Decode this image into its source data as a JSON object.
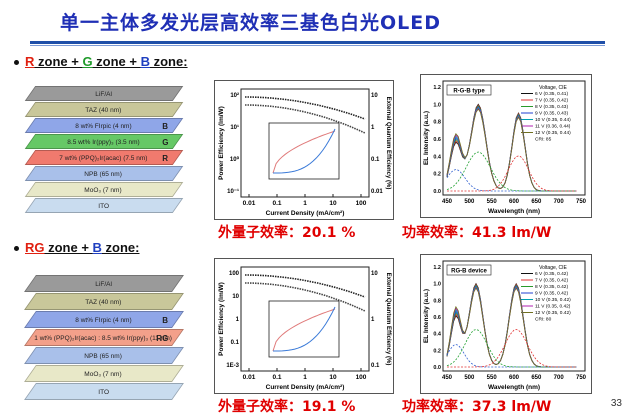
{
  "title": "单一主体多发光层高效率三基色白光OLED",
  "sections": [
    {
      "bullet": [
        "R",
        " zone + ",
        "G",
        " zone + ",
        "B",
        " zone:"
      ],
      "layers": [
        {
          "label": "LiF/Al",
          "letter": "",
          "color": "#9a9a9a"
        },
        {
          "label": "TAZ (40 nm)",
          "letter": "",
          "color": "#c9c79a"
        },
        {
          "label": "8 wt% FIrpic (4 nm)",
          "letter": "B",
          "color": "#8fa6e8"
        },
        {
          "label": "8.5 wt% Ir(ppy)₃ (3.5 nm)",
          "letter": "G",
          "color": "#66c866"
        },
        {
          "label": "7 wt% (PPQ)₂Ir(acac) (7.5 nm)",
          "letter": "R",
          "color": "#f07a6e"
        },
        {
          "label": "NPB (65 nm)",
          "letter": "",
          "color": "#a9c0ea"
        },
        {
          "label": "MoO₃ (7 nm)",
          "letter": "",
          "color": "#e8e8c8"
        },
        {
          "label": "ITO",
          "letter": "",
          "color": "#c9dcef"
        }
      ],
      "eff_chart": {
        "xlabel": "Current Density (mA/cm²)",
        "ylabel": "Power Efficiency (lm/W)",
        "y2label": "External Quantum Efficiency (%)",
        "xticks": [
          "0.01",
          "0.1",
          "1",
          "10",
          "100"
        ],
        "yticks": [
          "10²",
          "10¹",
          "10⁰",
          "10⁻¹"
        ],
        "y2ticks": [
          "10",
          "1",
          "0.1",
          "0.01"
        ]
      },
      "el_chart": {
        "legend_label": "R-G-B type",
        "legend_title": "Voltage, CIE",
        "legend_items": [
          "6 V (0.35, 0.41)",
          "7 V (0.35, 0.42)",
          "8 V (0.35, 0.43)",
          "9 V (0.35, 0.43)",
          "10 V (0.35, 0.44)",
          "11 V (0.36, 0.44)",
          "12 V (0.35, 0.44)",
          "CRI: 85"
        ],
        "xlabel": "Wavelength (nm)",
        "ylabel": "EL Intensity (a.u.)",
        "xticks": [
          "450",
          "500",
          "550",
          "600",
          "650",
          "700",
          "750"
        ],
        "yticks": [
          "0.0",
          "0.2",
          "0.4",
          "0.6",
          "0.8",
          "1.0",
          "1.2"
        ]
      },
      "stats": {
        "eqe_label": "外量子效率：",
        "eqe_value": "20.1 %",
        "pe_label": "功率效率：",
        "pe_value": "41.3 lm/W"
      }
    },
    {
      "bullet": [
        "RG",
        " zone + ",
        "B",
        " zone:"
      ],
      "layers": [
        {
          "label": "LiF/Al",
          "letter": "",
          "color": "#9a9a9a"
        },
        {
          "label": "TAZ (40 nm)",
          "letter": "",
          "color": "#c9c79a"
        },
        {
          "label": "8 wt% FIrpic (4 nm)",
          "letter": "B",
          "color": "#8fa6e8"
        },
        {
          "label": "1 wt% (PPQ)₂Ir(acac) : 8.5 wt% Ir(ppy)₃ (11 nm)",
          "letter": "RG",
          "color": "#f3a08a"
        },
        {
          "label": "NPB (65 nm)",
          "letter": "",
          "color": "#a9c0ea"
        },
        {
          "label": "MoO₃ (7 nm)",
          "letter": "",
          "color": "#e8e8c8"
        },
        {
          "label": "ITO",
          "letter": "",
          "color": "#c9dcef"
        }
      ],
      "eff_chart": {
        "xlabel": "Current Density (mA/cm²)",
        "ylabel": "Power Efficiency (lm/W)",
        "y2label": "External Quantum Efficiency (%)",
        "xticks": [
          "0.01",
          "0.1",
          "1",
          "10",
          "100"
        ],
        "yticks": [
          "100",
          "10",
          "1",
          "0.1",
          "1E-3"
        ],
        "y2ticks": [
          "10",
          "1",
          "0.1"
        ]
      },
      "el_chart": {
        "legend_label": "RG-B device",
        "legend_title": "Voltage, CIE",
        "legend_items": [
          "6 V (0.35, 0.42)",
          "7 V (0.35, 0.42)",
          "8 V (0.35, 0.42)",
          "9 V (0.35, 0.42)",
          "10 V (0.35, 0.42)",
          "11 V (0.35, 0.42)",
          "12 V (0.35, 0.42)",
          "CRI: 80"
        ],
        "xlabel": "Wavelength (nm)",
        "ylabel": "EL Intensity (a.u.)",
        "xticks": [
          "450",
          "500",
          "550",
          "600",
          "650",
          "700",
          "750"
        ],
        "yticks": [
          "0.0",
          "0.2",
          "0.4",
          "0.6",
          "0.8",
          "1.0",
          "1.2"
        ]
      },
      "stats": {
        "eqe_label": "外量子效率：",
        "eqe_value": "19.1 %",
        "pe_label": "功率效率：",
        "pe_value": "37.3 lm/W"
      }
    }
  ],
  "page_number": "33"
}
